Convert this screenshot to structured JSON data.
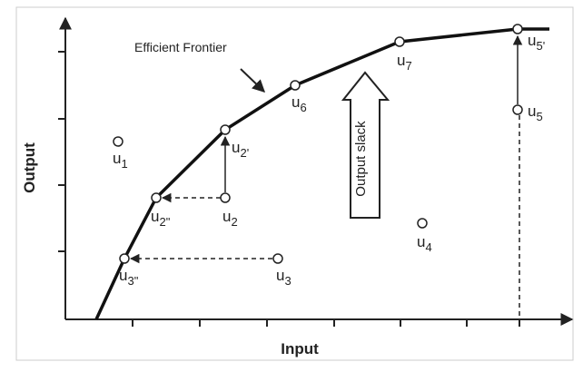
{
  "axes": {
    "y_label": "Output",
    "x_label": "Input"
  },
  "frontier_label": "Efficient Frontier",
  "slack_label": "Output slack",
  "points": [
    {
      "name": "u",
      "sub": "1"
    },
    {
      "name": "u",
      "sub": "2"
    },
    {
      "name": "u",
      "sub": "2'"
    },
    {
      "name": "u",
      "sub": "2\""
    },
    {
      "name": "u",
      "sub": "3"
    },
    {
      "name": "u",
      "sub": "3\""
    },
    {
      "name": "u",
      "sub": "4"
    },
    {
      "name": "u",
      "sub": "5"
    },
    {
      "name": "u",
      "sub": "5'"
    },
    {
      "name": "u",
      "sub": "6"
    },
    {
      "name": "u",
      "sub": "7"
    }
  ]
}
